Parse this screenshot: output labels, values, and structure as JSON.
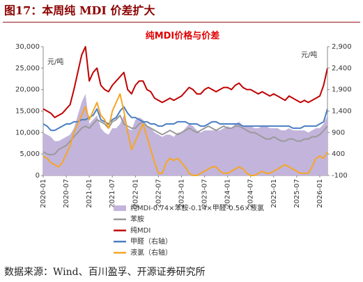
{
  "header": {
    "title": "图17：本周纯 MDI 价差扩大"
  },
  "chart_data": {
    "type": "line",
    "title": "纯MDI价格与价差",
    "y_label": "元/吨",
    "y2_label": "元/吨",
    "x": [
      "2020-01",
      "2020-02",
      "2020-03",
      "2020-04",
      "2020-05",
      "2020-06",
      "2020-07",
      "2020-08",
      "2020-09",
      "2020-10",
      "2020-11",
      "2020-12",
      "2021-01",
      "2021-02",
      "2021-03",
      "2021-04",
      "2021-05",
      "2021-06",
      "2021-07",
      "2021-08",
      "2021-09",
      "2021-10",
      "2021-11",
      "2021-12",
      "2022-01",
      "2022-02",
      "2022-03",
      "2022-04",
      "2022-05",
      "2022-06",
      "2022-07",
      "2022-08",
      "2022-09",
      "2022-10",
      "2022-11",
      "2022-12",
      "2023-01",
      "2023-02",
      "2023-03",
      "2023-04",
      "2023-05",
      "2023-06",
      "2023-07",
      "2023-08",
      "2023-09",
      "2023-10",
      "2023-11",
      "2023-12",
      "2024-01",
      "2024-02",
      "2024-03",
      "2024-04",
      "2024-05",
      "2024-06",
      "2024-07",
      "2024-08",
      "2024-09",
      "2024-10",
      "2024-11",
      "2024-12",
      "2025-01",
      "2025-02",
      "2025-03",
      "2025-04",
      "2025-05",
      "2025-06",
      "2025-07",
      "2025-08",
      "2025-09",
      "2025-10",
      "2025-11",
      "2025-12",
      "2026-01",
      "2026-02",
      "2026-03"
    ],
    "ylim": [
      0,
      30000
    ],
    "yticks": [
      0,
      {
        "value": 5000,
        "label": "5,000"
      },
      {
        "value": 10000,
        "label": "10,000"
      },
      {
        "value": 15000,
        "label": "15,000"
      },
      {
        "value": 20000,
        "label": "20,000"
      },
      {
        "value": 25000,
        "label": "25,000"
      },
      {
        "value": 30000,
        "label": "30,000"
      }
    ],
    "y2lim": [
      -100,
      2900
    ],
    "y2ticks": [
      -100,
      400,
      900,
      {
        "value": 1400,
        "label": "1,400"
      },
      {
        "value": 1900,
        "label": "1,900"
      },
      {
        "value": 2400,
        "label": "2,400"
      },
      {
        "value": 2900,
        "label": "2,900"
      }
    ],
    "series": [
      {
        "name": "纯MDI-0.74×苯胺-0.14×甲醛-0.56×液氯",
        "kind": "area",
        "color": "#c3b4dc",
        "values": [
          10000,
          9500,
          9000,
          8000,
          8000,
          8500,
          9000,
          9500,
          11000,
          14000,
          17000,
          19000,
          12000,
          13000,
          14000,
          11000,
          10000,
          9500,
          11000,
          11000,
          12000,
          14000,
          11000,
          10500,
          13000,
          13500,
          13000,
          11500,
          11000,
          10000,
          9500,
          9000,
          9500,
          9500,
          9000,
          10000,
          10000,
          11000,
          12000,
          11500,
          10500,
          10000,
          10500,
          10500,
          10500,
          10500,
          10500,
          11000,
          11500,
          11000,
          12000,
          12500,
          11500,
          11500,
          11500,
          11000,
          11000,
          11500,
          11500,
          11000,
          11000,
          11000,
          10500,
          10500,
          11000,
          10500,
          10500,
          10500,
          10500,
          10000,
          10500,
          11000,
          11000,
          12000,
          14000
        ]
      },
      {
        "name": "苯胺",
        "kind": "line",
        "color": "#9a9a9a",
        "values": [
          5500,
          5000,
          4800,
          5000,
          6000,
          6500,
          7000,
          8000,
          9000,
          10000,
          11000,
          11500,
          11000,
          12000,
          13000,
          12500,
          12000,
          11000,
          12500,
          13000,
          14000,
          12000,
          11500,
          11000,
          11000,
          12000,
          12500,
          11500,
          11000,
          10500,
          10000,
          9500,
          10000,
          10500,
          10000,
          9500,
          10000,
          10500,
          11000,
          10500,
          10000,
          10500,
          11000,
          11500,
          11000,
          10500,
          11000,
          11500,
          11000,
          11000,
          11500,
          11500,
          11000,
          10500,
          10000,
          10000,
          9500,
          9000,
          8500,
          8500,
          9000,
          8500,
          8000,
          8000,
          8500,
          8500,
          8000,
          8000,
          8500,
          8500,
          9000,
          9000,
          9500,
          10500,
          11500
        ]
      },
      {
        "name": "纯MDI",
        "kind": "line",
        "color": "#c00000",
        "values": [
          15500,
          15000,
          14500,
          13500,
          14000,
          14500,
          15500,
          16500,
          20000,
          24000,
          28000,
          30000,
          22000,
          24000,
          25000,
          21000,
          20000,
          19500,
          21000,
          22000,
          23000,
          24000,
          20000,
          19000,
          21000,
          22000,
          22000,
          20000,
          19500,
          18000,
          17500,
          17000,
          17500,
          18000,
          17500,
          18000,
          18500,
          19500,
          20500,
          20000,
          19000,
          19000,
          20000,
          20500,
          20000,
          19500,
          20000,
          20500,
          20500,
          20000,
          21000,
          21500,
          20500,
          20000,
          20000,
          19500,
          19000,
          19500,
          19000,
          18500,
          19000,
          18500,
          18000,
          17500,
          18500,
          18000,
          17500,
          17000,
          17500,
          17000,
          17500,
          18000,
          18500,
          21000,
          25000
        ]
      },
      {
        "name": "甲醛（右轴）",
        "kind": "line",
        "axis": "y2",
        "color": "#4a7ec2",
        "values": [
          1100,
          1050,
          950,
          950,
          1000,
          1050,
          1100,
          1100,
          1150,
          1150,
          1200,
          1200,
          1250,
          1300,
          1450,
          1200,
          1150,
          1100,
          1200,
          1250,
          1400,
          1500,
          1350,
          1250,
          1250,
          1200,
          1150,
          1150,
          1100,
          1100,
          1050,
          1050,
          1100,
          1100,
          1100,
          1150,
          1150,
          1150,
          1100,
          1100,
          1100,
          1050,
          1050,
          1100,
          1150,
          1150,
          1100,
          1100,
          1100,
          1100,
          1100,
          1100,
          1050,
          1050,
          1050,
          1050,
          1050,
          1050,
          1050,
          1050,
          1050,
          1050,
          1050,
          1050,
          1050,
          1000,
          1000,
          1000,
          1050,
          1050,
          1050,
          1050,
          1100,
          1150,
          1450
        ]
      },
      {
        "name": "液氯（右轴）",
        "kind": "line",
        "axis": "y2",
        "color": "#f5a623",
        "values": [
          350,
          300,
          200,
          150,
          100,
          200,
          400,
          600,
          900,
          1100,
          1300,
          1500,
          1200,
          1400,
          1600,
          1300,
          1200,
          1000,
          1400,
          1600,
          1800,
          1400,
          900,
          500,
          700,
          900,
          1100,
          800,
          500,
          200,
          -50,
          -50,
          200,
          300,
          250,
          300,
          200,
          100,
          -50,
          -100,
          -100,
          -50,
          0,
          50,
          100,
          100,
          0,
          -50,
          -50,
          0,
          50,
          100,
          50,
          -50,
          -100,
          -100,
          -50,
          0,
          -50,
          -50,
          0,
          50,
          100,
          150,
          100,
          50,
          0,
          -50,
          -50,
          -50,
          100,
          300,
          350,
          300,
          450
        ]
      }
    ]
  },
  "footer": {
    "source": "数据来源：Wind、百川盈孚、开源证券研究所"
  }
}
